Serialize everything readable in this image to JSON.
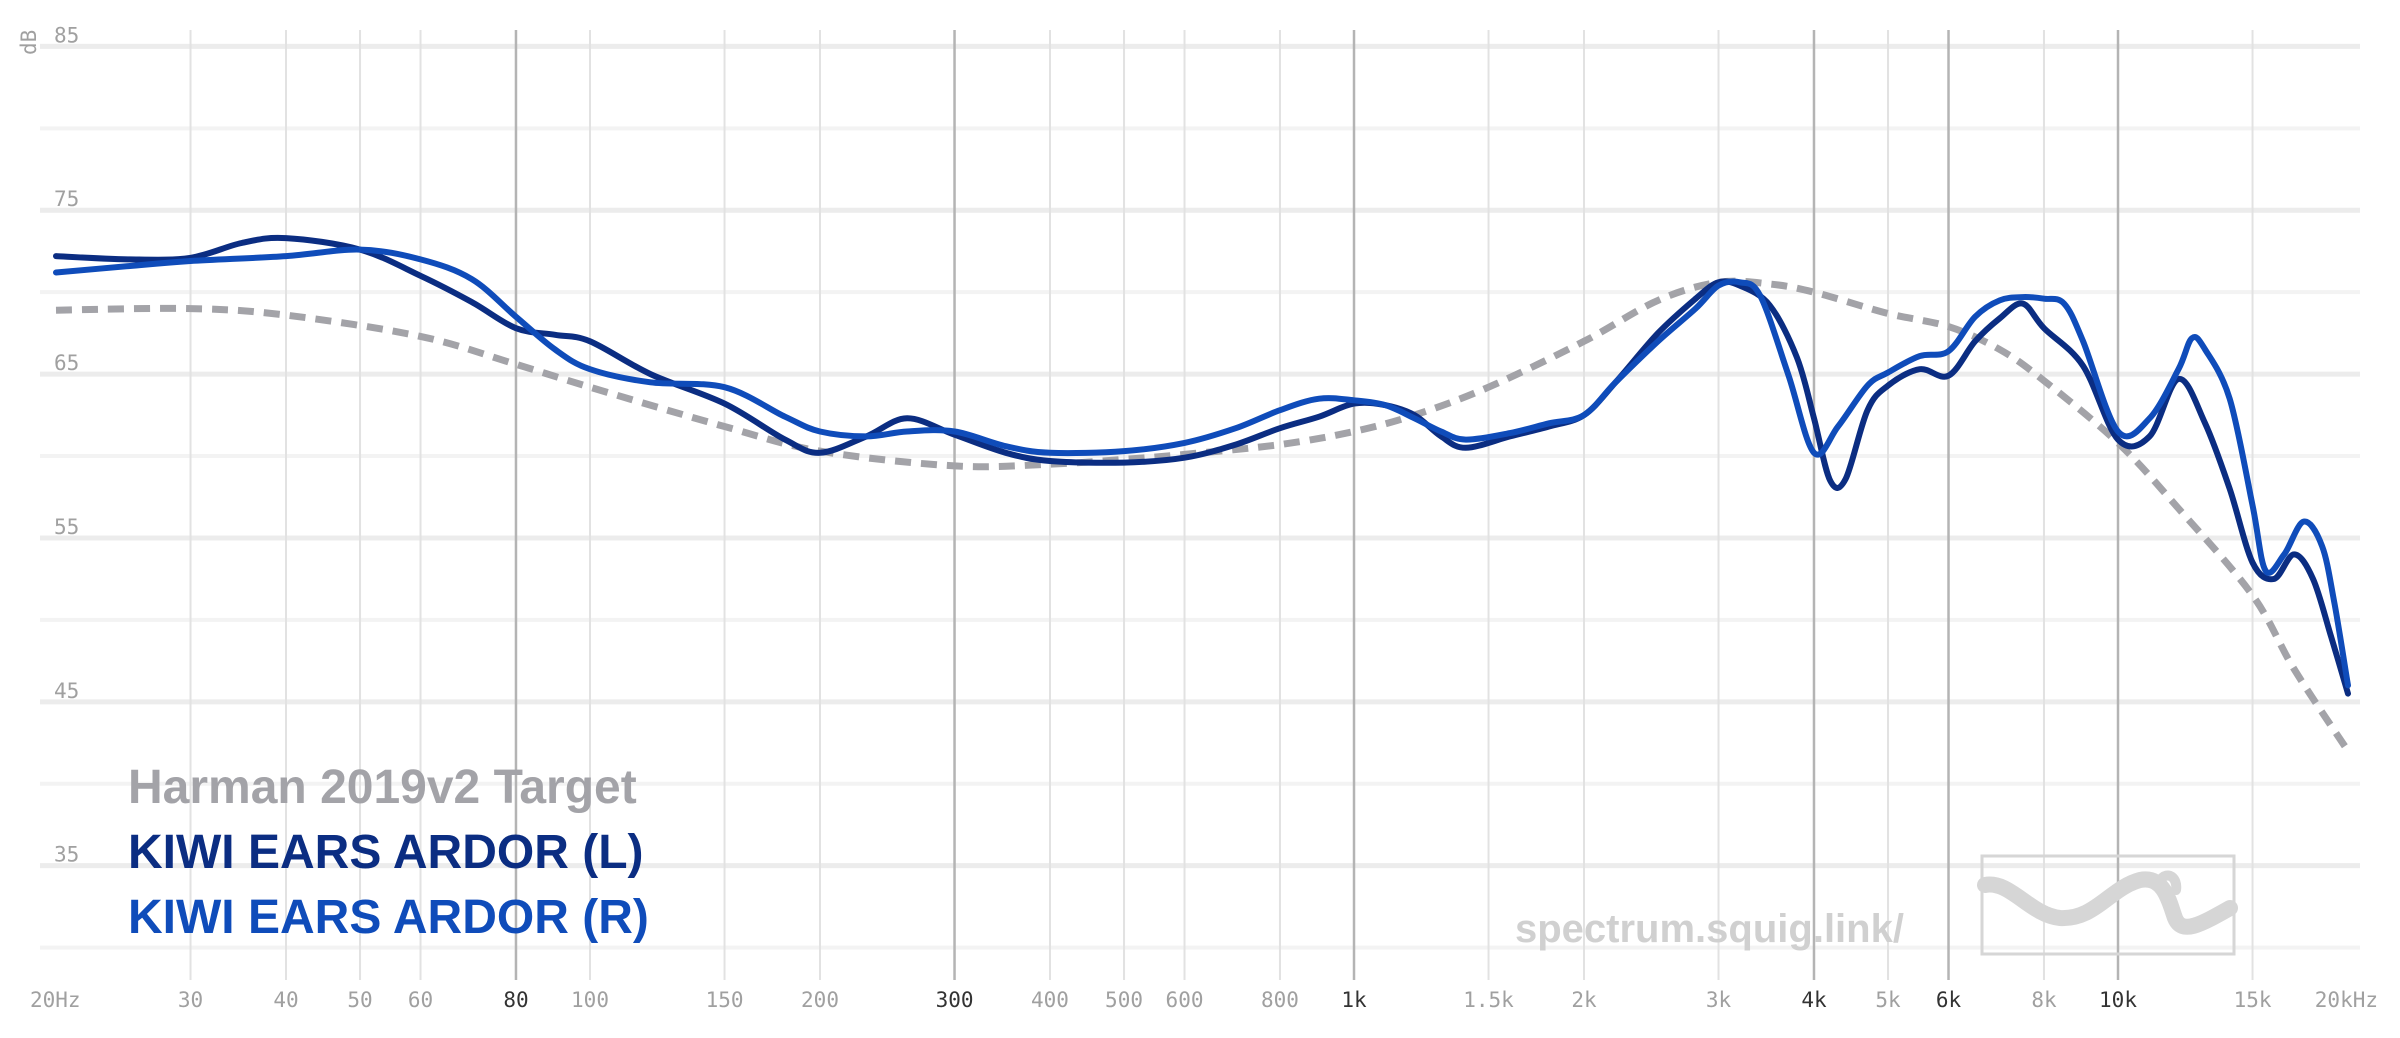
{
  "chart_data": {
    "type": "line",
    "ylabel": "dB",
    "ylim": [
      29,
      86
    ],
    "xlim": [
      20,
      20000
    ],
    "x_scale": "log",
    "grid": true,
    "y_ticks": [
      "85",
      "75",
      "65",
      "55",
      "45",
      "35"
    ],
    "x_ticks": [
      {
        "f": 20,
        "label": "20Hz",
        "major": false
      },
      {
        "f": 30,
        "label": "30",
        "major": false
      },
      {
        "f": 40,
        "label": "40",
        "major": false
      },
      {
        "f": 50,
        "label": "50",
        "major": false
      },
      {
        "f": 60,
        "label": "60",
        "major": false
      },
      {
        "f": 80,
        "label": "80",
        "major": true
      },
      {
        "f": 100,
        "label": "100",
        "major": false
      },
      {
        "f": 150,
        "label": "150",
        "major": false
      },
      {
        "f": 200,
        "label": "200",
        "major": false
      },
      {
        "f": 300,
        "label": "300",
        "major": true
      },
      {
        "f": 400,
        "label": "400",
        "major": false
      },
      {
        "f": 500,
        "label": "500",
        "major": false
      },
      {
        "f": 600,
        "label": "600",
        "major": false
      },
      {
        "f": 800,
        "label": "800",
        "major": false
      },
      {
        "f": 1000,
        "label": "1k",
        "major": true
      },
      {
        "f": 1500,
        "label": "1.5k",
        "major": false
      },
      {
        "f": 2000,
        "label": "2k",
        "major": false
      },
      {
        "f": 3000,
        "label": "3k",
        "major": false
      },
      {
        "f": 4000,
        "label": "4k",
        "major": true
      },
      {
        "f": 5000,
        "label": "5k",
        "major": false
      },
      {
        "f": 6000,
        "label": "6k",
        "major": true
      },
      {
        "f": 8000,
        "label": "8k",
        "major": false
      },
      {
        "f": 10000,
        "label": "10k",
        "major": true
      },
      {
        "f": 15000,
        "label": "15k",
        "major": false
      },
      {
        "f": 20000,
        "label": "20kHz",
        "major": false
      }
    ],
    "series": [
      {
        "name": "Harman 2019v2 Target",
        "color": "#a3a3a8",
        "dashed": true,
        "points": [
          [
            20,
            68.9
          ],
          [
            30,
            69.0
          ],
          [
            40,
            68.6
          ],
          [
            60,
            67.3
          ],
          [
            80,
            65.6
          ],
          [
            100,
            64.2
          ],
          [
            150,
            61.8
          ],
          [
            200,
            60.3
          ],
          [
            300,
            59.4
          ],
          [
            400,
            59.5
          ],
          [
            500,
            59.8
          ],
          [
            600,
            60.1
          ],
          [
            800,
            60.7
          ],
          [
            1000,
            61.5
          ],
          [
            1200,
            62.5
          ],
          [
            1500,
            64.2
          ],
          [
            2000,
            67.0
          ],
          [
            2500,
            69.5
          ],
          [
            3000,
            70.6
          ],
          [
            3500,
            70.5
          ],
          [
            4000,
            70.0
          ],
          [
            5000,
            68.7
          ],
          [
            6000,
            67.9
          ],
          [
            7000,
            66.5
          ],
          [
            8000,
            64.6
          ],
          [
            10000,
            60.8
          ],
          [
            12000,
            56.8
          ],
          [
            15000,
            51.5
          ],
          [
            17000,
            47.0
          ],
          [
            20000,
            42.0
          ]
        ]
      },
      {
        "name": "KIWI EARS ARDOR (L)",
        "color": "#0b2d82",
        "dashed": false,
        "points": [
          [
            20,
            72.2
          ],
          [
            25,
            72.0
          ],
          [
            30,
            72.1
          ],
          [
            35,
            73.0
          ],
          [
            40,
            73.3
          ],
          [
            50,
            72.6
          ],
          [
            60,
            71.0
          ],
          [
            70,
            69.4
          ],
          [
            80,
            67.8
          ],
          [
            90,
            67.4
          ],
          [
            100,
            67.0
          ],
          [
            120,
            65.0
          ],
          [
            150,
            63.2
          ],
          [
            180,
            61.0
          ],
          [
            200,
            60.2
          ],
          [
            230,
            61.2
          ],
          [
            260,
            62.3
          ],
          [
            300,
            61.3
          ],
          [
            350,
            60.2
          ],
          [
            400,
            59.7
          ],
          [
            500,
            59.6
          ],
          [
            600,
            59.9
          ],
          [
            700,
            60.7
          ],
          [
            800,
            61.7
          ],
          [
            900,
            62.4
          ],
          [
            1000,
            63.2
          ],
          [
            1100,
            63.1
          ],
          [
            1200,
            62.5
          ],
          [
            1300,
            61.2
          ],
          [
            1400,
            60.5
          ],
          [
            1600,
            61.2
          ],
          [
            1800,
            61.8
          ],
          [
            2000,
            62.5
          ],
          [
            2200,
            64.5
          ],
          [
            2500,
            67.5
          ],
          [
            2800,
            69.6
          ],
          [
            3000,
            70.6
          ],
          [
            3200,
            70.4
          ],
          [
            3500,
            69.2
          ],
          [
            3800,
            66.0
          ],
          [
            4000,
            62.3
          ],
          [
            4200,
            58.5
          ],
          [
            4400,
            58.6
          ],
          [
            4700,
            62.8
          ],
          [
            5000,
            64.3
          ],
          [
            5500,
            65.3
          ],
          [
            6000,
            64.9
          ],
          [
            6500,
            67.0
          ],
          [
            7000,
            68.4
          ],
          [
            7500,
            69.3
          ],
          [
            8000,
            67.8
          ],
          [
            9000,
            65.5
          ],
          [
            10000,
            61.0
          ],
          [
            11000,
            61.2
          ],
          [
            12000,
            64.7
          ],
          [
            13000,
            62.0
          ],
          [
            14000,
            58.0
          ],
          [
            15000,
            53.5
          ],
          [
            16000,
            52.5
          ],
          [
            17000,
            54.0
          ],
          [
            18000,
            52.5
          ],
          [
            19000,
            49.0
          ],
          [
            20000,
            45.5
          ]
        ]
      },
      {
        "name": "KIWI EARS ARDOR (R)",
        "color": "#0f4cba",
        "dashed": false,
        "points": [
          [
            20,
            71.2
          ],
          [
            25,
            71.6
          ],
          [
            30,
            71.9
          ],
          [
            40,
            72.2
          ],
          [
            50,
            72.6
          ],
          [
            60,
            72.0
          ],
          [
            70,
            70.8
          ],
          [
            80,
            68.5
          ],
          [
            90,
            66.5
          ],
          [
            100,
            65.3
          ],
          [
            120,
            64.5
          ],
          [
            150,
            64.2
          ],
          [
            180,
            62.4
          ],
          [
            200,
            61.5
          ],
          [
            230,
            61.2
          ],
          [
            260,
            61.5
          ],
          [
            300,
            61.5
          ],
          [
            350,
            60.6
          ],
          [
            400,
            60.2
          ],
          [
            500,
            60.3
          ],
          [
            600,
            60.8
          ],
          [
            700,
            61.7
          ],
          [
            800,
            62.8
          ],
          [
            900,
            63.5
          ],
          [
            1000,
            63.4
          ],
          [
            1100,
            63.1
          ],
          [
            1200,
            62.3
          ],
          [
            1300,
            61.5
          ],
          [
            1400,
            61.0
          ],
          [
            1600,
            61.4
          ],
          [
            1800,
            62.0
          ],
          [
            2000,
            62.5
          ],
          [
            2200,
            64.5
          ],
          [
            2500,
            67.0
          ],
          [
            2800,
            69.0
          ],
          [
            3000,
            70.4
          ],
          [
            3200,
            70.6
          ],
          [
            3400,
            69.8
          ],
          [
            3700,
            65.0
          ],
          [
            4000,
            60.2
          ],
          [
            4300,
            61.8
          ],
          [
            4700,
            64.3
          ],
          [
            5000,
            65.1
          ],
          [
            5500,
            66.1
          ],
          [
            6000,
            66.4
          ],
          [
            6500,
            68.5
          ],
          [
            7000,
            69.5
          ],
          [
            7500,
            69.7
          ],
          [
            8000,
            69.6
          ],
          [
            8500,
            69.3
          ],
          [
            9000,
            67.0
          ],
          [
            10000,
            61.5
          ],
          [
            11000,
            62.3
          ],
          [
            12000,
            65.3
          ],
          [
            12500,
            67.2
          ],
          [
            13000,
            66.5
          ],
          [
            14000,
            63.5
          ],
          [
            15000,
            57.0
          ],
          [
            15600,
            53.0
          ],
          [
            16500,
            54.0
          ],
          [
            17500,
            56.0
          ],
          [
            18500,
            54.5
          ],
          [
            19200,
            51.0
          ],
          [
            20000,
            46.0
          ]
        ]
      }
    ],
    "legend": [
      "Harman 2019v2 Target",
      "KIWI EARS ARDOR (L)",
      "KIWI EARS ARDOR (R)"
    ],
    "legend_placement": "bottom-left",
    "watermark": "spectrum.squig.link/"
  }
}
